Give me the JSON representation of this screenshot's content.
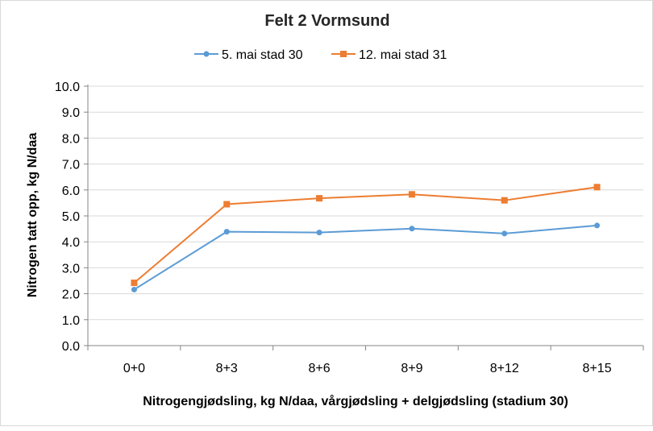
{
  "chart_data": {
    "type": "line",
    "title": "Felt 2 Vormsund",
    "xlabel": "Nitrogengjødsling, kg N/daa, vårgjødsling + delgjødsling (stadium 30)",
    "ylabel": "Nitrogen tatt opp, kg N/daa",
    "categories": [
      "0+0",
      "8+3",
      "8+6",
      "8+9",
      "8+12",
      "8+15"
    ],
    "ylim": [
      0,
      10
    ],
    "yticks": [
      "0.0",
      "1.0",
      "2.0",
      "3.0",
      "4.0",
      "5.0",
      "6.0",
      "7.0",
      "8.0",
      "9.0",
      "10.0"
    ],
    "grid": true,
    "legend": "top",
    "series": [
      {
        "name": "5. mai stad 30",
        "color": "#5b9bd5",
        "marker": "circle",
        "values": [
          2.16,
          4.39,
          4.36,
          4.51,
          4.32,
          4.63
        ]
      },
      {
        "name": "12. mai stad 31",
        "color": "#ed7d31",
        "marker": "square",
        "values": [
          2.42,
          5.45,
          5.68,
          5.83,
          5.6,
          6.11
        ]
      }
    ]
  }
}
